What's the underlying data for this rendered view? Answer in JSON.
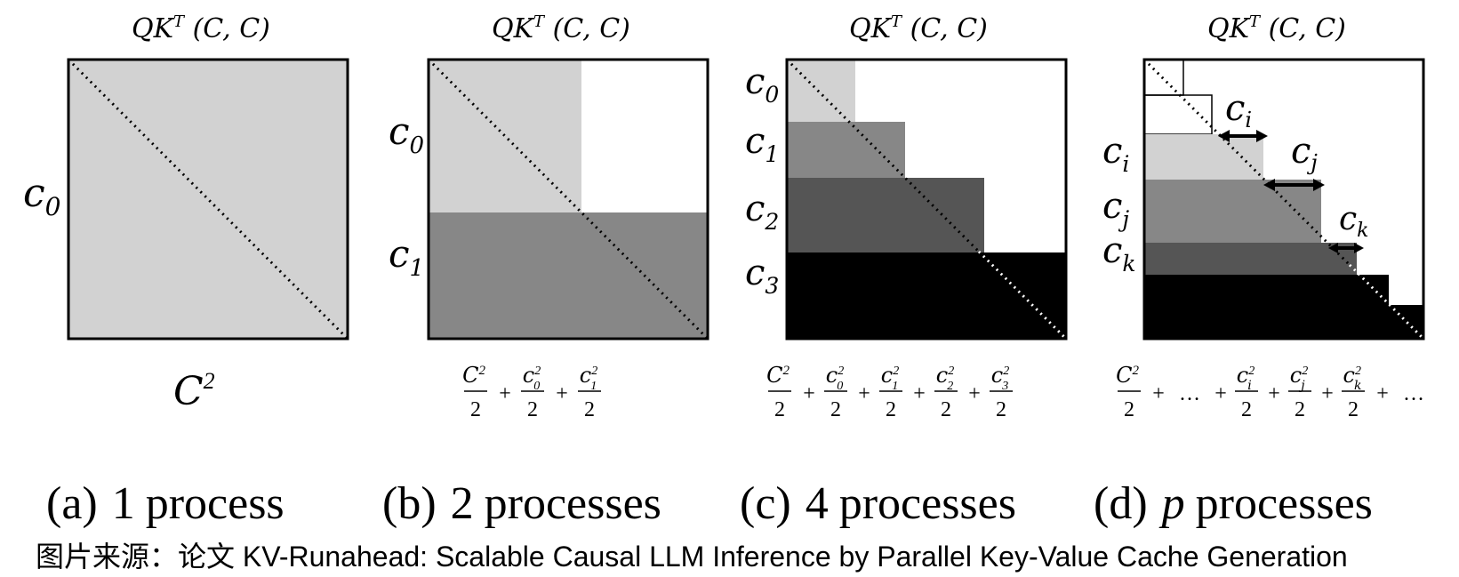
{
  "colors": {
    "light": "#d2d2d2",
    "mid": "#878787",
    "dark": "#555555",
    "black": "#000000",
    "white": "#ffffff"
  },
  "panels": [
    {
      "title": {
        "main": "QK",
        "sup": "T",
        "dims": " (C, C)"
      },
      "row_labels": [
        {
          "base": "c",
          "sub": "0"
        }
      ],
      "bottom_label": {
        "base": "C",
        "sup": "2"
      },
      "caption": {
        "letter": "(a)",
        "count": "1",
        "word": "process"
      }
    },
    {
      "title": {
        "main": "QK",
        "sup": "T",
        "dims": " (C, C)"
      },
      "row_labels": [
        {
          "base": "c",
          "sub": "0"
        },
        {
          "base": "c",
          "sub": "1"
        }
      ],
      "formula": {
        "first": {
          "num": "C",
          "sup": "2",
          "den": "2"
        },
        "terms": [
          {
            "sub": "0"
          },
          {
            "sub": "1"
          }
        ],
        "term_base": "c",
        "term_sup": "2",
        "den": "2",
        "plus": "+"
      },
      "caption": {
        "letter": "(b)",
        "count": "2",
        "word": "processes"
      }
    },
    {
      "title": {
        "main": "QK",
        "sup": "T",
        "dims": " (C, C)"
      },
      "row_labels": [
        {
          "base": "c",
          "sub": "0"
        },
        {
          "base": "c",
          "sub": "1"
        },
        {
          "base": "c",
          "sub": "2"
        },
        {
          "base": "c",
          "sub": "3"
        }
      ],
      "formula": {
        "first": {
          "num": "C",
          "sup": "2",
          "den": "2"
        },
        "terms": [
          {
            "sub": "0"
          },
          {
            "sub": "1"
          },
          {
            "sub": "2"
          },
          {
            "sub": "3"
          }
        ],
        "term_base": "c",
        "term_sup": "2",
        "den": "2",
        "plus": "+"
      },
      "caption": {
        "letter": "(c)",
        "count": "4",
        "word": "processes"
      }
    },
    {
      "title": {
        "main": "QK",
        "sup": "T",
        "dims": " (C, C)"
      },
      "row_labels": [
        {
          "base": "c",
          "sub": "i"
        },
        {
          "base": "c",
          "sub": "j"
        },
        {
          "base": "c",
          "sub": "k"
        }
      ],
      "arrow_labels": [
        {
          "base": "c",
          "sub": "i"
        },
        {
          "base": "c",
          "sub": "j"
        },
        {
          "base": "c",
          "sub": "k"
        }
      ],
      "formula": {
        "first": {
          "num": "C",
          "sup": "2",
          "den": "2"
        },
        "terms": [
          {
            "sub": "i"
          },
          {
            "sub": "j"
          },
          {
            "sub": "k"
          }
        ],
        "term_base": "c",
        "term_sup": "2",
        "den": "2",
        "plus": "+",
        "ellipsis": "…"
      },
      "caption": {
        "letter": "(d)",
        "count": "p",
        "word": "processes"
      }
    }
  ],
  "source": "图片来源：论文 KV-Runahead: Scalable Causal LLM Inference by Parallel Key-Value Cache Generation"
}
